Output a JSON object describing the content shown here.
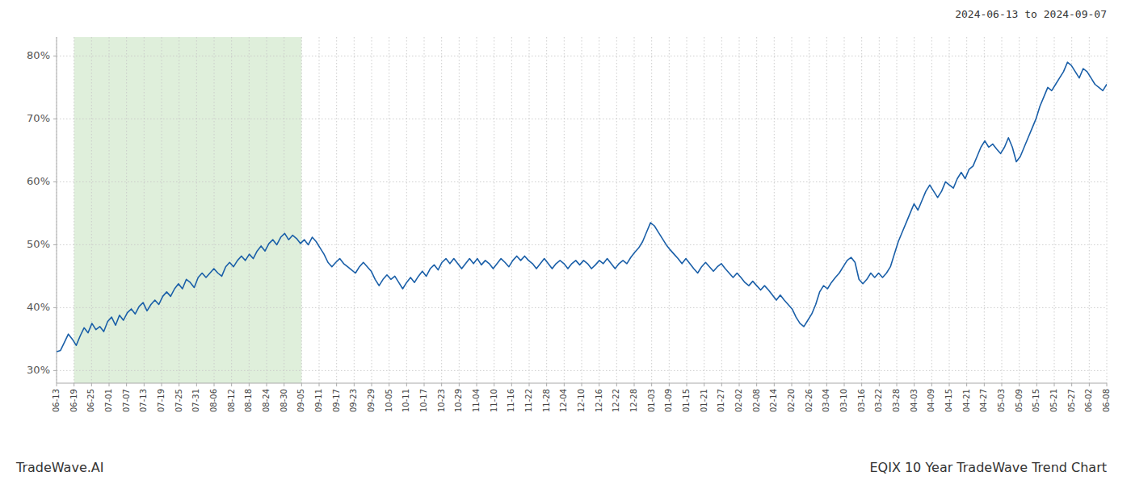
{
  "chart_data": {
    "type": "line",
    "title": "EQIX 10 Year TradeWave Trend Chart",
    "annotations": [
      "2024-06-13 to 2024-09-07",
      "TradeWave.AI"
    ],
    "color": "#1a5fa8",
    "grid": true,
    "ylim": [
      28,
      83
    ],
    "yticks": [
      {
        "value": 30,
        "label": "30%"
      },
      {
        "value": 40,
        "label": "40%"
      },
      {
        "value": 50,
        "label": "50%"
      },
      {
        "value": 60,
        "label": "60%"
      },
      {
        "value": 70,
        "label": "70%"
      },
      {
        "value": 80,
        "label": "80%"
      }
    ],
    "xlim": [
      0,
      267
    ],
    "xticks": [
      {
        "value": 0,
        "label": "06-13"
      },
      {
        "value": 4.45,
        "label": "06-19"
      },
      {
        "value": 8.9,
        "label": "06-25"
      },
      {
        "value": 13.35,
        "label": "07-01"
      },
      {
        "value": 17.8,
        "label": "07-07"
      },
      {
        "value": 22.25,
        "label": "07-13"
      },
      {
        "value": 26.7,
        "label": "07-19"
      },
      {
        "value": 31.15,
        "label": "07-25"
      },
      {
        "value": 35.6,
        "label": "07-31"
      },
      {
        "value": 40.05,
        "label": "08-06"
      },
      {
        "value": 44.5,
        "label": "08-12"
      },
      {
        "value": 48.95,
        "label": "08-18"
      },
      {
        "value": 53.4,
        "label": "08-24"
      },
      {
        "value": 57.85,
        "label": "08-30"
      },
      {
        "value": 62.3,
        "label": "09-05"
      },
      {
        "value": 66.75,
        "label": "09-11"
      },
      {
        "value": 71.2,
        "label": "09-17"
      },
      {
        "value": 75.65,
        "label": "09-23"
      },
      {
        "value": 80.1,
        "label": "09-29"
      },
      {
        "value": 84.55,
        "label": "10-05"
      },
      {
        "value": 89,
        "label": "10-11"
      },
      {
        "value": 93.45,
        "label": "10-17"
      },
      {
        "value": 97.9,
        "label": "10-23"
      },
      {
        "value": 102.35,
        "label": "10-29"
      },
      {
        "value": 106.8,
        "label": "11-04"
      },
      {
        "value": 111.25,
        "label": "11-10"
      },
      {
        "value": 115.7,
        "label": "11-16"
      },
      {
        "value": 120.15,
        "label": "11-22"
      },
      {
        "value": 124.6,
        "label": "11-28"
      },
      {
        "value": 129.05,
        "label": "12-04"
      },
      {
        "value": 133.5,
        "label": "12-10"
      },
      {
        "value": 137.95,
        "label": "12-16"
      },
      {
        "value": 142.4,
        "label": "12-22"
      },
      {
        "value": 146.85,
        "label": "12-28"
      },
      {
        "value": 151.3,
        "label": "01-03"
      },
      {
        "value": 155.75,
        "label": "01-09"
      },
      {
        "value": 160.2,
        "label": "01-15"
      },
      {
        "value": 164.65,
        "label": "01-21"
      },
      {
        "value": 169.1,
        "label": "01-27"
      },
      {
        "value": 173.55,
        "label": "02-02"
      },
      {
        "value": 178,
        "label": "02-08"
      },
      {
        "value": 182.45,
        "label": "02-14"
      },
      {
        "value": 186.9,
        "label": "02-20"
      },
      {
        "value": 191.35,
        "label": "02-26"
      },
      {
        "value": 195.8,
        "label": "03-04"
      },
      {
        "value": 200.25,
        "label": "03-10"
      },
      {
        "value": 204.7,
        "label": "03-16"
      },
      {
        "value": 209.15,
        "label": "03-22"
      },
      {
        "value": 213.6,
        "label": "03-28"
      },
      {
        "value": 218.05,
        "label": "04-03"
      },
      {
        "value": 222.5,
        "label": "04-09"
      },
      {
        "value": 226.95,
        "label": "04-15"
      },
      {
        "value": 231.4,
        "label": "04-21"
      },
      {
        "value": 235.85,
        "label": "04-27"
      },
      {
        "value": 240.3,
        "label": "05-03"
      },
      {
        "value": 244.75,
        "label": "05-09"
      },
      {
        "value": 249.2,
        "label": "05-15"
      },
      {
        "value": 253.65,
        "label": "05-21"
      },
      {
        "value": 258.1,
        "label": "05-27"
      },
      {
        "value": 262.55,
        "label": "06-02"
      },
      {
        "value": 267,
        "label": "06-08"
      }
    ],
    "shaded_range": {
      "start": 4.45,
      "end": 62.3,
      "color": "#d4eacf"
    },
    "values": [
      33.0,
      33.2,
      34.5,
      35.8,
      35.0,
      34.0,
      35.5,
      36.8,
      36.0,
      37.5,
      36.5,
      37.0,
      36.2,
      37.8,
      38.5,
      37.2,
      38.8,
      38.0,
      39.2,
      39.8,
      39.0,
      40.2,
      40.8,
      39.5,
      40.5,
      41.2,
      40.5,
      41.8,
      42.5,
      41.8,
      43.0,
      43.8,
      43.0,
      44.5,
      44.0,
      43.2,
      44.8,
      45.5,
      44.8,
      45.5,
      46.2,
      45.5,
      45.0,
      46.5,
      47.2,
      46.5,
      47.5,
      48.2,
      47.5,
      48.5,
      47.8,
      49.0,
      49.8,
      49.0,
      50.2,
      50.8,
      50.0,
      51.2,
      51.8,
      50.8,
      51.5,
      51.0,
      50.2,
      50.8,
      50.0,
      51.2,
      50.5,
      49.5,
      48.5,
      47.2,
      46.5,
      47.2,
      47.8,
      47.0,
      46.5,
      46.0,
      45.5,
      46.5,
      47.2,
      46.5,
      45.8,
      44.5,
      43.5,
      44.5,
      45.2,
      44.5,
      45.0,
      44.0,
      43.0,
      44.0,
      44.8,
      44.0,
      45.0,
      45.8,
      45.0,
      46.2,
      46.8,
      46.0,
      47.2,
      47.8,
      47.0,
      47.8,
      47.0,
      46.2,
      47.0,
      47.8,
      47.0,
      47.8,
      46.8,
      47.5,
      47.0,
      46.2,
      47.0,
      47.8,
      47.2,
      46.5,
      47.5,
      48.2,
      47.5,
      48.2,
      47.5,
      47.0,
      46.2,
      47.0,
      47.8,
      47.0,
      46.2,
      47.0,
      47.5,
      47.0,
      46.2,
      47.0,
      47.5,
      46.8,
      47.5,
      47.0,
      46.2,
      46.8,
      47.5,
      47.0,
      47.8,
      47.0,
      46.2,
      47.0,
      47.5,
      47.0,
      48.0,
      48.8,
      49.5,
      50.5,
      52.0,
      53.5,
      53.0,
      52.0,
      51.0,
      50.0,
      49.2,
      48.5,
      47.8,
      47.0,
      47.8,
      47.0,
      46.2,
      45.5,
      46.5,
      47.2,
      46.5,
      45.8,
      46.5,
      47.0,
      46.2,
      45.5,
      44.8,
      45.5,
      44.8,
      44.0,
      43.5,
      44.2,
      43.5,
      42.8,
      43.5,
      42.8,
      42.0,
      41.2,
      42.0,
      41.2,
      40.5,
      39.8,
      38.5,
      37.5,
      37.0,
      38.0,
      39.0,
      40.5,
      42.5,
      43.5,
      43.0,
      44.0,
      44.8,
      45.5,
      46.5,
      47.5,
      48.0,
      47.2,
      44.5,
      43.8,
      44.5,
      45.5,
      44.8,
      45.5,
      44.8,
      45.5,
      46.5,
      48.5,
      50.5,
      52.0,
      53.5,
      55.0,
      56.5,
      55.5,
      57.0,
      58.5,
      59.5,
      58.5,
      57.5,
      58.5,
      60.0,
      59.5,
      59.0,
      60.5,
      61.5,
      60.5,
      62.0,
      62.5,
      64.0,
      65.5,
      66.5,
      65.5,
      66.0,
      65.2,
      64.5,
      65.5,
      67.0,
      65.5,
      63.2,
      64.0,
      65.5,
      67.0,
      68.5,
      70.0,
      72.0,
      73.5,
      75.0,
      74.5,
      75.5,
      76.5,
      77.5,
      79.0,
      78.5,
      77.5,
      76.5,
      78.0,
      77.5,
      76.5,
      75.5,
      75.0,
      74.5,
      75.5
    ]
  }
}
